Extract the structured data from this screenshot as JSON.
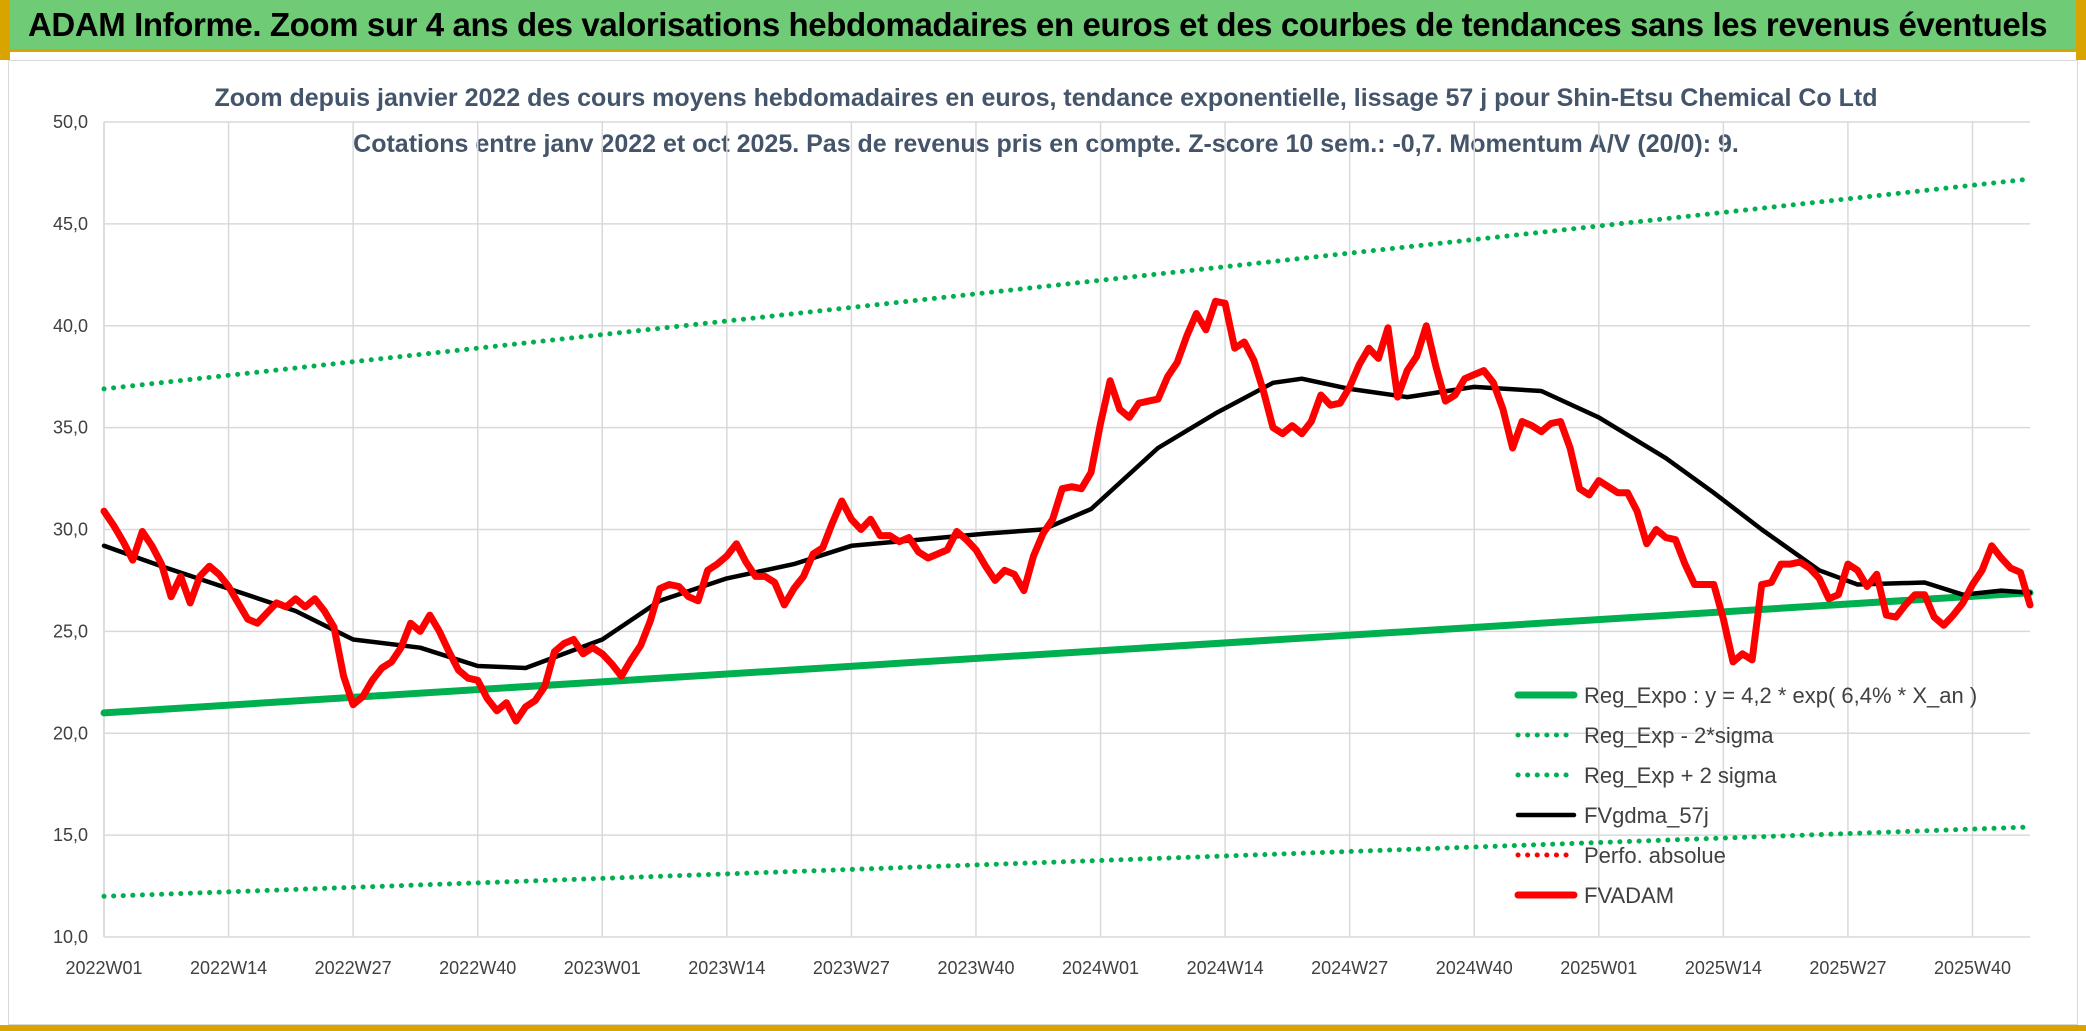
{
  "header": {
    "title": "ADAM Informe. Zoom sur 4 ans des valorisations hebdomadaires en euros et des courbes de tendances sans les revenus éventuels"
  },
  "colors": {
    "banner": "#6fcb76",
    "accent_gold": "#d9a400",
    "reg_expo": "#00b050",
    "fvgdma": "#000000",
    "fvadam": "#ff0000",
    "title_text": "#44546a"
  },
  "chart_data": {
    "type": "line",
    "title": "Zoom depuis janvier 2022 des cours moyens hebdomadaires en euros, tendance exponentielle, lissage 57 j pour Shin-Etsu Chemical Co Ltd",
    "subtitle": "Cotations entre janv 2022 et oct 2025. Pas de revenus pris en compte. Z-score 10 sem.: -0,7. Momentum A/V (20/0): 9.",
    "xlabel": "",
    "ylabel": "",
    "ylim": [
      10,
      50
    ],
    "yticks": [
      "10,0",
      "15,0",
      "20,0",
      "25,0",
      "30,0",
      "35,0",
      "40,0",
      "45,0",
      "50,0"
    ],
    "xticks": [
      "2022W01",
      "2022W14",
      "2022W27",
      "2022W40",
      "2023W01",
      "2023W14",
      "2023W27",
      "2023W40",
      "2024W01",
      "2024W14",
      "2024W27",
      "2024W40",
      "2025W01",
      "2025W14",
      "2025W27",
      "2025W40"
    ],
    "x_range_weeks": [
      0,
      201
    ],
    "grid": true,
    "legend_position": "bottom-right",
    "series": [
      {
        "name": "Reg_Expo : y = 4,2 * exp( 6,4% *  X_an )",
        "style": "solid-thick",
        "color": "#00b050",
        "points": [
          [
            0,
            21.0
          ],
          [
            201,
            26.9
          ]
        ]
      },
      {
        "name": "Reg_Exp - 2*sigma",
        "style": "dotted",
        "color": "#00b050",
        "points": [
          [
            0,
            12.0
          ],
          [
            201,
            15.4
          ]
        ]
      },
      {
        "name": "Reg_Exp + 2 sigma",
        "style": "dotted",
        "color": "#00b050",
        "points": [
          [
            0,
            36.9
          ],
          [
            201,
            47.2
          ]
        ]
      },
      {
        "name": "FVgdma_57j",
        "style": "solid",
        "color": "#000000",
        "points": [
          [
            0,
            29.2
          ],
          [
            6,
            28.2
          ],
          [
            13,
            27.1
          ],
          [
            20,
            26.0
          ],
          [
            26,
            24.6
          ],
          [
            33,
            24.2
          ],
          [
            39,
            23.3
          ],
          [
            44,
            23.2
          ],
          [
            52,
            24.6
          ],
          [
            58,
            26.5
          ],
          [
            65,
            27.6
          ],
          [
            72,
            28.3
          ],
          [
            78,
            29.2
          ],
          [
            85,
            29.5
          ],
          [
            92,
            29.8
          ],
          [
            98,
            30.0
          ],
          [
            103,
            31.0
          ],
          [
            110,
            34.0
          ],
          [
            116,
            35.7
          ],
          [
            122,
            37.2
          ],
          [
            125,
            37.4
          ],
          [
            130,
            36.9
          ],
          [
            136,
            36.5
          ],
          [
            143,
            37.0
          ],
          [
            150,
            36.8
          ],
          [
            156,
            35.5
          ],
          [
            163,
            33.5
          ],
          [
            168,
            31.8
          ],
          [
            173,
            30.0
          ],
          [
            179,
            28.0
          ],
          [
            183,
            27.3
          ],
          [
            190,
            27.4
          ],
          [
            194,
            26.8
          ],
          [
            198,
            27.0
          ],
          [
            201,
            26.9
          ]
        ]
      },
      {
        "name": "Perfo. absolue",
        "style": "dotted",
        "color": "#ff0000",
        "points": []
      },
      {
        "name": "FVADAM",
        "style": "solid-thick",
        "color": "#ff0000",
        "points": [
          [
            0,
            30.9
          ],
          [
            1,
            30.2
          ],
          [
            2,
            29.4
          ],
          [
            3,
            28.5
          ],
          [
            4,
            29.9
          ],
          [
            5,
            29.2
          ],
          [
            6,
            28.3
          ],
          [
            7,
            26.7
          ],
          [
            8,
            27.7
          ],
          [
            9,
            26.4
          ],
          [
            10,
            27.7
          ],
          [
            11,
            28.2
          ],
          [
            12,
            27.8
          ],
          [
            13,
            27.2
          ],
          [
            14,
            26.4
          ],
          [
            15,
            25.6
          ],
          [
            16,
            25.4
          ],
          [
            17,
            25.9
          ],
          [
            18,
            26.4
          ],
          [
            19,
            26.2
          ],
          [
            20,
            26.6
          ],
          [
            21,
            26.2
          ],
          [
            22,
            26.6
          ],
          [
            23,
            26.0
          ],
          [
            24,
            25.2
          ],
          [
            25,
            22.8
          ],
          [
            26,
            21.4
          ],
          [
            27,
            21.8
          ],
          [
            28,
            22.6
          ],
          [
            29,
            23.2
          ],
          [
            30,
            23.5
          ],
          [
            31,
            24.2
          ],
          [
            32,
            25.4
          ],
          [
            33,
            25.0
          ],
          [
            34,
            25.8
          ],
          [
            35,
            25.0
          ],
          [
            36,
            24.0
          ],
          [
            37,
            23.1
          ],
          [
            38,
            22.7
          ],
          [
            39,
            22.6
          ],
          [
            40,
            21.7
          ],
          [
            41,
            21.1
          ],
          [
            42,
            21.5
          ],
          [
            43,
            20.6
          ],
          [
            44,
            21.3
          ],
          [
            45,
            21.6
          ],
          [
            46,
            22.3
          ],
          [
            47,
            24.0
          ],
          [
            48,
            24.4
          ],
          [
            49,
            24.6
          ],
          [
            50,
            23.9
          ],
          [
            51,
            24.2
          ],
          [
            52,
            23.9
          ],
          [
            53,
            23.4
          ],
          [
            54,
            22.8
          ],
          [
            55,
            23.6
          ],
          [
            56,
            24.3
          ],
          [
            57,
            25.5
          ],
          [
            58,
            27.1
          ],
          [
            59,
            27.3
          ],
          [
            60,
            27.2
          ],
          [
            61,
            26.7
          ],
          [
            62,
            26.5
          ],
          [
            63,
            28.0
          ],
          [
            64,
            28.3
          ],
          [
            65,
            28.7
          ],
          [
            66,
            29.3
          ],
          [
            67,
            28.4
          ],
          [
            68,
            27.7
          ],
          [
            69,
            27.7
          ],
          [
            70,
            27.4
          ],
          [
            71,
            26.3
          ],
          [
            72,
            27.1
          ],
          [
            73,
            27.7
          ],
          [
            74,
            28.8
          ],
          [
            75,
            29.1
          ],
          [
            76,
            30.3
          ],
          [
            77,
            31.4
          ],
          [
            78,
            30.5
          ],
          [
            79,
            30.0
          ],
          [
            80,
            30.5
          ],
          [
            81,
            29.7
          ],
          [
            82,
            29.7
          ],
          [
            83,
            29.4
          ],
          [
            84,
            29.6
          ],
          [
            85,
            28.9
          ],
          [
            86,
            28.6
          ],
          [
            87,
            28.8
          ],
          [
            88,
            29.0
          ],
          [
            89,
            29.9
          ],
          [
            90,
            29.5
          ],
          [
            91,
            29.0
          ],
          [
            92,
            28.2
          ],
          [
            93,
            27.5
          ],
          [
            94,
            28.0
          ],
          [
            95,
            27.8
          ],
          [
            96,
            27.0
          ],
          [
            97,
            28.7
          ],
          [
            98,
            29.8
          ],
          [
            99,
            30.5
          ],
          [
            100,
            32.0
          ],
          [
            101,
            32.1
          ],
          [
            102,
            32.0
          ],
          [
            103,
            32.8
          ],
          [
            104,
            35.2
          ],
          [
            105,
            37.3
          ],
          [
            106,
            35.9
          ],
          [
            107,
            35.5
          ],
          [
            108,
            36.2
          ],
          [
            109,
            36.3
          ],
          [
            110,
            36.4
          ],
          [
            111,
            37.5
          ],
          [
            112,
            38.2
          ],
          [
            113,
            39.5
          ],
          [
            114,
            40.6
          ],
          [
            115,
            39.8
          ],
          [
            116,
            41.2
          ],
          [
            117,
            41.1
          ],
          [
            118,
            38.9
          ],
          [
            119,
            39.2
          ],
          [
            120,
            38.3
          ],
          [
            121,
            36.8
          ],
          [
            122,
            35.0
          ],
          [
            123,
            34.7
          ],
          [
            124,
            35.1
          ],
          [
            125,
            34.7
          ],
          [
            126,
            35.3
          ],
          [
            127,
            36.6
          ],
          [
            128,
            36.1
          ],
          [
            129,
            36.2
          ],
          [
            130,
            37.0
          ],
          [
            131,
            38.1
          ],
          [
            132,
            38.9
          ],
          [
            133,
            38.4
          ],
          [
            134,
            39.9
          ],
          [
            135,
            36.5
          ],
          [
            136,
            37.8
          ],
          [
            137,
            38.5
          ],
          [
            138,
            40.0
          ],
          [
            139,
            38.0
          ],
          [
            140,
            36.3
          ],
          [
            141,
            36.6
          ],
          [
            142,
            37.4
          ],
          [
            143,
            37.6
          ],
          [
            144,
            37.8
          ],
          [
            145,
            37.2
          ],
          [
            146,
            35.9
          ],
          [
            147,
            34.0
          ],
          [
            148,
            35.3
          ],
          [
            149,
            35.1
          ],
          [
            150,
            34.8
          ],
          [
            151,
            35.2
          ],
          [
            152,
            35.3
          ],
          [
            153,
            34.0
          ],
          [
            154,
            32.0
          ],
          [
            155,
            31.7
          ],
          [
            156,
            32.4
          ],
          [
            157,
            32.1
          ],
          [
            158,
            31.8
          ],
          [
            159,
            31.8
          ],
          [
            160,
            30.9
          ],
          [
            161,
            29.3
          ],
          [
            162,
            30.0
          ],
          [
            163,
            29.6
          ],
          [
            164,
            29.5
          ],
          [
            165,
            28.3
          ],
          [
            166,
            27.3
          ],
          [
            167,
            27.3
          ],
          [
            168,
            27.3
          ],
          [
            169,
            25.6
          ],
          [
            170,
            23.5
          ],
          [
            171,
            23.9
          ],
          [
            172,
            23.6
          ],
          [
            173,
            27.3
          ],
          [
            174,
            27.4
          ],
          [
            175,
            28.3
          ],
          [
            176,
            28.3
          ],
          [
            177,
            28.4
          ],
          [
            178,
            28.1
          ],
          [
            179,
            27.6
          ],
          [
            180,
            26.6
          ],
          [
            181,
            26.8
          ],
          [
            182,
            28.3
          ],
          [
            183,
            28.0
          ],
          [
            184,
            27.2
          ],
          [
            185,
            27.8
          ],
          [
            186,
            25.8
          ],
          [
            187,
            25.7
          ],
          [
            188,
            26.3
          ],
          [
            189,
            26.8
          ],
          [
            190,
            26.8
          ],
          [
            191,
            25.7
          ],
          [
            192,
            25.3
          ],
          [
            193,
            25.8
          ],
          [
            194,
            26.4
          ],
          [
            195,
            27.3
          ],
          [
            196,
            28.0
          ],
          [
            197,
            29.2
          ],
          [
            198,
            28.6
          ],
          [
            199,
            28.1
          ],
          [
            200,
            27.9
          ],
          [
            201,
            26.3
          ]
        ]
      }
    ]
  }
}
